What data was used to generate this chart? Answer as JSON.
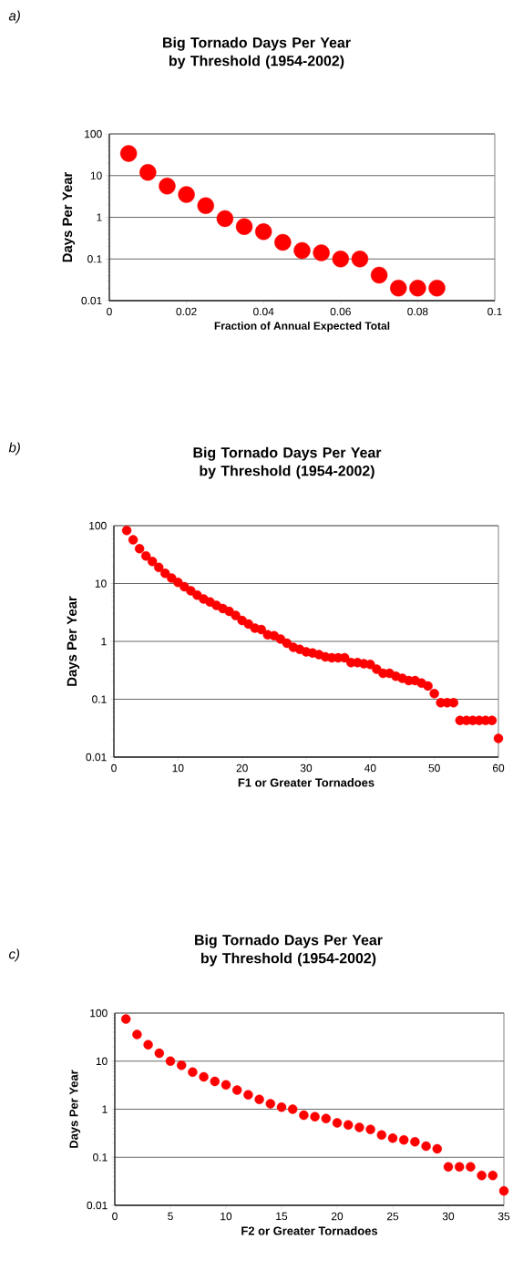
{
  "chart_data": [
    {
      "type": "scatter",
      "title": "Big Tornado Days Per Year by Threshold (1954-2002)",
      "xlabel": "Fraction of Annual Expected Total",
      "ylabel": "Days Per Year",
      "annotations": [
        "a)"
      ],
      "color": "#ff0000",
      "marker": "circle",
      "grid": "y",
      "log": "y",
      "xlim": [
        0,
        0.1
      ],
      "xticks": [
        0,
        0.02,
        0.04,
        0.06,
        0.08,
        0.1
      ],
      "ylim": [
        0.01,
        100
      ],
      "yticks": [
        0.01,
        0.1,
        1,
        10,
        100
      ],
      "x": [
        0.005,
        0.01,
        0.015,
        0.02,
        0.025,
        0.03,
        0.035,
        0.04,
        0.045,
        0.05,
        0.055,
        0.06,
        0.065,
        0.07,
        0.075,
        0.08,
        0.085
      ],
      "values": [
        34,
        12,
        5.6,
        3.5,
        1.9,
        0.93,
        0.6,
        0.45,
        0.25,
        0.16,
        0.14,
        0.1,
        0.1,
        0.041,
        0.02,
        0.02,
        0.02
      ]
    },
    {
      "type": "scatter",
      "title": "Big Tornado Days Per Year by Threshold (1954-2002)",
      "xlabel": "F1 or Greater Tornadoes",
      "ylabel": "Days Per Year",
      "annotations": [
        "b)"
      ],
      "color": "#ff0000",
      "marker": "circle",
      "grid": "y",
      "log": "y",
      "xlim": [
        0,
        60
      ],
      "xticks": [
        0,
        10,
        20,
        30,
        40,
        50,
        60
      ],
      "ylim": [
        0.01,
        100
      ],
      "yticks": [
        0.01,
        0.1,
        1,
        10,
        100
      ],
      "x": [
        2,
        3,
        4,
        5,
        6,
        7,
        8,
        9,
        10,
        11,
        12,
        13,
        14,
        15,
        16,
        17,
        18,
        19,
        20,
        21,
        22,
        23,
        24,
        25,
        26,
        27,
        28,
        29,
        30,
        31,
        32,
        33,
        34,
        35,
        36,
        37,
        38,
        39,
        40,
        41,
        42,
        43,
        44,
        45,
        46,
        47,
        48,
        49,
        50,
        51,
        52,
        53,
        54,
        55,
        56,
        57,
        58,
        59,
        60
      ],
      "values": [
        83,
        57,
        40,
        30,
        24,
        19,
        15,
        12.4,
        10.5,
        8.8,
        7.5,
        6.3,
        5.4,
        4.8,
        4.2,
        3.7,
        3.3,
        2.8,
        2.3,
        2.0,
        1.7,
        1.6,
        1.3,
        1.25,
        1.1,
        0.93,
        0.79,
        0.73,
        0.66,
        0.63,
        0.59,
        0.54,
        0.52,
        0.52,
        0.52,
        0.43,
        0.43,
        0.41,
        0.4,
        0.33,
        0.28,
        0.28,
        0.25,
        0.23,
        0.21,
        0.21,
        0.19,
        0.17,
        0.125,
        0.087,
        0.087,
        0.087,
        0.043,
        0.043,
        0.043,
        0.043,
        0.043,
        0.043,
        0.021
      ]
    },
    {
      "type": "scatter",
      "title": "Big Tornado Days Per Year by Threshold (1954-2002)",
      "xlabel": "F2 or Greater Tornadoes",
      "ylabel": "Days Per Year",
      "annotations": [
        "c)"
      ],
      "color": "#ff0000",
      "marker": "circle",
      "grid": "y",
      "log": "y",
      "xlim": [
        0,
        35
      ],
      "xticks": [
        0,
        5,
        10,
        15,
        20,
        25,
        30,
        35
      ],
      "ylim": [
        0.01,
        100
      ],
      "yticks": [
        0.01,
        0.1,
        1,
        10,
        100
      ],
      "x": [
        1,
        2,
        3,
        4,
        5,
        6,
        7,
        8,
        9,
        10,
        11,
        12,
        13,
        14,
        15,
        16,
        17,
        18,
        19,
        20,
        21,
        22,
        23,
        24,
        25,
        26,
        27,
        28,
        29,
        30,
        31,
        32,
        33,
        34,
        35
      ],
      "values": [
        75,
        36,
        22,
        14.6,
        10,
        8.2,
        5.9,
        4.7,
        3.8,
        3.2,
        2.5,
        2.0,
        1.6,
        1.3,
        1.1,
        1.0,
        0.75,
        0.7,
        0.64,
        0.52,
        0.47,
        0.42,
        0.38,
        0.29,
        0.25,
        0.23,
        0.21,
        0.17,
        0.15,
        0.063,
        0.063,
        0.063,
        0.042,
        0.042,
        0.02
      ]
    }
  ]
}
